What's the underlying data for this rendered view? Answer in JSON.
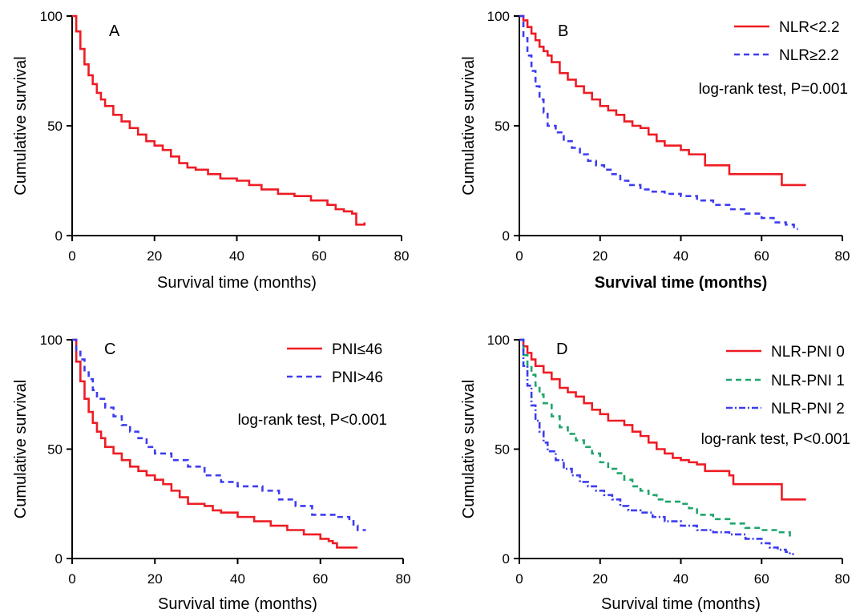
{
  "chart_data": [
    {
      "type": "line",
      "panel_label": "A",
      "xlabel": "Survival time (months)",
      "ylabel": "Cumulative survival",
      "xlim": [
        0,
        80
      ],
      "ylim": [
        0,
        100
      ],
      "xticks": [
        "0",
        "20",
        "40",
        "60",
        "80"
      ],
      "yticks": [
        "0",
        "50",
        "100"
      ],
      "xlabel_bold": false,
      "legend_position": "",
      "annotation": "",
      "series": [
        {
          "name": "",
          "color": "#ee1c24",
          "dash": "solid",
          "points": [
            [
              0,
              100
            ],
            [
              1,
              93
            ],
            [
              2,
              85
            ],
            [
              3,
              78
            ],
            [
              4,
              73
            ],
            [
              5,
              69
            ],
            [
              6,
              65
            ],
            [
              7,
              62
            ],
            [
              8,
              59
            ],
            [
              10,
              55
            ],
            [
              12,
              52
            ],
            [
              14,
              49
            ],
            [
              16,
              46
            ],
            [
              18,
              43
            ],
            [
              20,
              41
            ],
            [
              22,
              39
            ],
            [
              24,
              36
            ],
            [
              26,
              33
            ],
            [
              28,
              31
            ],
            [
              30,
              30
            ],
            [
              33,
              28
            ],
            [
              36,
              26
            ],
            [
              40,
              25
            ],
            [
              43,
              23
            ],
            [
              46,
              21
            ],
            [
              50,
              19
            ],
            [
              54,
              18
            ],
            [
              58,
              16
            ],
            [
              62,
              14
            ],
            [
              64,
              12
            ],
            [
              66,
              11
            ],
            [
              68,
              10
            ],
            [
              69,
              5
            ],
            [
              70,
              5
            ],
            [
              71,
              6
            ]
          ]
        }
      ]
    },
    {
      "type": "line",
      "panel_label": "B",
      "xlabel": "Survival time (months)",
      "ylabel": "Cumulative survival",
      "xlim": [
        0,
        80
      ],
      "ylim": [
        0,
        100
      ],
      "xticks": [
        "0",
        "20",
        "40",
        "60",
        "80"
      ],
      "yticks": [
        "0",
        "50",
        "100"
      ],
      "xlabel_bold": true,
      "legend_position": "top-right",
      "annotation": "log-rank test, P=0.001",
      "series": [
        {
          "name": "NLR<2.2",
          "color": "#ee1c24",
          "dash": "solid",
          "points": [
            [
              0,
              100
            ],
            [
              1,
              98
            ],
            [
              2,
              95
            ],
            [
              3,
              92
            ],
            [
              4,
              89
            ],
            [
              5,
              86
            ],
            [
              6,
              84
            ],
            [
              7,
              82
            ],
            [
              8,
              79
            ],
            [
              10,
              74
            ],
            [
              12,
              71
            ],
            [
              14,
              68
            ],
            [
              16,
              65
            ],
            [
              18,
              62
            ],
            [
              20,
              59
            ],
            [
              22,
              57
            ],
            [
              24,
              55
            ],
            [
              26,
              52
            ],
            [
              28,
              50
            ],
            [
              30,
              49
            ],
            [
              32,
              46
            ],
            [
              34,
              43
            ],
            [
              36,
              41
            ],
            [
              40,
              39
            ],
            [
              42,
              37
            ],
            [
              46,
              32
            ],
            [
              52,
              28
            ],
            [
              65,
              23
            ],
            [
              71,
              23
            ]
          ]
        },
        {
          "name": "NLR≥2.2",
          "color": "#3d3df0",
          "dash": "dashed",
          "points": [
            [
              0,
              100
            ],
            [
              1,
              90
            ],
            [
              2,
              82
            ],
            [
              3,
              75
            ],
            [
              4,
              68
            ],
            [
              5,
              62
            ],
            [
              6,
              56
            ],
            [
              7,
              50
            ],
            [
              9,
              47
            ],
            [
              11,
              43
            ],
            [
              13,
              40
            ],
            [
              15,
              37
            ],
            [
              17,
              34
            ],
            [
              19,
              32
            ],
            [
              21,
              30
            ],
            [
              23,
              28
            ],
            [
              25,
              25
            ],
            [
              27,
              23
            ],
            [
              30,
              21
            ],
            [
              33,
              20
            ],
            [
              36,
              19
            ],
            [
              40,
              18
            ],
            [
              44,
              16
            ],
            [
              48,
              14
            ],
            [
              52,
              12
            ],
            [
              56,
              10
            ],
            [
              60,
              8
            ],
            [
              63,
              6
            ],
            [
              66,
              5
            ],
            [
              68,
              3
            ],
            [
              69,
              3
            ]
          ]
        }
      ]
    },
    {
      "type": "line",
      "panel_label": "C",
      "xlabel": "Survival time (months)",
      "ylabel": "Cumulative survival",
      "xlim": [
        0,
        80
      ],
      "ylim": [
        0,
        100
      ],
      "xticks": [
        "0",
        "20",
        "40",
        "60",
        "80"
      ],
      "yticks": [
        "0",
        "50",
        "100"
      ],
      "xlabel_bold": false,
      "legend_position": "top-right",
      "annotation": "log-rank test, P<0.001",
      "series": [
        {
          "name": "PNI≤46",
          "color": "#ee1c24",
          "dash": "solid",
          "points": [
            [
              0,
              100
            ],
            [
              1,
              90
            ],
            [
              2,
              81
            ],
            [
              3,
              73
            ],
            [
              4,
              67
            ],
            [
              5,
              62
            ],
            [
              6,
              58
            ],
            [
              7,
              55
            ],
            [
              8,
              51
            ],
            [
              10,
              48
            ],
            [
              12,
              45
            ],
            [
              14,
              42
            ],
            [
              16,
              40
            ],
            [
              18,
              38
            ],
            [
              20,
              36
            ],
            [
              22,
              34
            ],
            [
              24,
              31
            ],
            [
              26,
              28
            ],
            [
              28,
              25
            ],
            [
              32,
              24
            ],
            [
              34,
              22
            ],
            [
              36,
              21
            ],
            [
              40,
              19
            ],
            [
              44,
              17
            ],
            [
              48,
              15
            ],
            [
              52,
              13
            ],
            [
              56,
              11
            ],
            [
              60,
              9
            ],
            [
              62,
              8
            ],
            [
              63,
              7
            ],
            [
              64,
              5
            ],
            [
              69,
              5
            ]
          ]
        },
        {
          "name": "PNI>46",
          "color": "#3d3df0",
          "dash": "dashed",
          "points": [
            [
              0,
              100
            ],
            [
              1,
              95
            ],
            [
              2,
              91
            ],
            [
              3,
              86
            ],
            [
              4,
              82
            ],
            [
              5,
              77
            ],
            [
              6,
              73
            ],
            [
              8,
              69
            ],
            [
              10,
              65
            ],
            [
              12,
              61
            ],
            [
              14,
              58
            ],
            [
              16,
              55
            ],
            [
              18,
              51
            ],
            [
              20,
              48
            ],
            [
              24,
              45
            ],
            [
              28,
              42
            ],
            [
              32,
              38
            ],
            [
              36,
              35
            ],
            [
              40,
              33
            ],
            [
              46,
              31
            ],
            [
              50,
              27
            ],
            [
              54,
              24
            ],
            [
              58,
              20
            ],
            [
              64,
              19
            ],
            [
              67,
              18
            ],
            [
              68,
              15
            ],
            [
              69,
              13
            ],
            [
              71,
              13
            ]
          ]
        }
      ]
    },
    {
      "type": "line",
      "panel_label": "D",
      "xlabel": "Survival time (months)",
      "ylabel": "Cumulative survival",
      "xlim": [
        0,
        80
      ],
      "ylim": [
        0,
        100
      ],
      "xticks": [
        "0",
        "20",
        "40",
        "60",
        "80"
      ],
      "yticks": [
        "0",
        "50",
        "100"
      ],
      "xlabel_bold": false,
      "legend_position": "top-right",
      "annotation": "log-rank test, P<0.001",
      "series": [
        {
          "name": "NLR-PNI 0",
          "color": "#ee1c24",
          "dash": "solid",
          "points": [
            [
              0,
              100
            ],
            [
              1,
              97
            ],
            [
              2,
              94
            ],
            [
              3,
              91
            ],
            [
              4,
              88
            ],
            [
              6,
              85
            ],
            [
              8,
              82
            ],
            [
              10,
              78
            ],
            [
              12,
              76
            ],
            [
              14,
              74
            ],
            [
              16,
              71
            ],
            [
              18,
              68
            ],
            [
              20,
              66
            ],
            [
              22,
              63
            ],
            [
              26,
              61
            ],
            [
              28,
              58
            ],
            [
              30,
              56
            ],
            [
              32,
              53
            ],
            [
              34,
              50
            ],
            [
              36,
              48
            ],
            [
              38,
              46
            ],
            [
              40,
              45
            ],
            [
              42,
              44
            ],
            [
              44,
              43
            ],
            [
              46,
              40
            ],
            [
              52,
              38
            ],
            [
              53,
              34
            ],
            [
              65,
              34
            ],
            [
              65,
              27
            ],
            [
              71,
              27
            ]
          ]
        },
        {
          "name": "NLR-PNI 1",
          "color": "#1fa56b",
          "dash": "dashed",
          "points": [
            [
              0,
              100
            ],
            [
              1,
              93
            ],
            [
              2,
              88
            ],
            [
              3,
              84
            ],
            [
              4,
              79
            ],
            [
              5,
              75
            ],
            [
              6,
              71
            ],
            [
              8,
              65
            ],
            [
              10,
              60
            ],
            [
              12,
              57
            ],
            [
              14,
              54
            ],
            [
              16,
              51
            ],
            [
              18,
              48
            ],
            [
              20,
              44
            ],
            [
              22,
              41
            ],
            [
              24,
              39
            ],
            [
              26,
              36
            ],
            [
              28,
              33
            ],
            [
              30,
              31
            ],
            [
              32,
              29
            ],
            [
              34,
              27
            ],
            [
              36,
              26
            ],
            [
              40,
              25
            ],
            [
              42,
              23
            ],
            [
              44,
              20
            ],
            [
              48,
              18
            ],
            [
              52,
              16
            ],
            [
              56,
              14
            ],
            [
              60,
              13
            ],
            [
              64,
              12
            ],
            [
              66,
              12
            ],
            [
              67,
              10
            ]
          ]
        },
        {
          "name": "NLR-PNI 2",
          "color": "#3d3df0",
          "dash": "dashdot",
          "points": [
            [
              0,
              100
            ],
            [
              1,
              88
            ],
            [
              2,
              79
            ],
            [
              3,
              70
            ],
            [
              4,
              63
            ],
            [
              5,
              58
            ],
            [
              6,
              53
            ],
            [
              7,
              49
            ],
            [
              9,
              45
            ],
            [
              11,
              41
            ],
            [
              13,
              38
            ],
            [
              15,
              35
            ],
            [
              17,
              33
            ],
            [
              19,
              31
            ],
            [
              21,
              29
            ],
            [
              23,
              27
            ],
            [
              25,
              24
            ],
            [
              27,
              22
            ],
            [
              30,
              21
            ],
            [
              33,
              19
            ],
            [
              36,
              17
            ],
            [
              40,
              15
            ],
            [
              44,
              13
            ],
            [
              48,
              12
            ],
            [
              52,
              11
            ],
            [
              56,
              9
            ],
            [
              60,
              7
            ],
            [
              62,
              5
            ],
            [
              64,
              4
            ],
            [
              66,
              3
            ],
            [
              67,
              2
            ],
            [
              68,
              2
            ]
          ]
        }
      ]
    }
  ]
}
